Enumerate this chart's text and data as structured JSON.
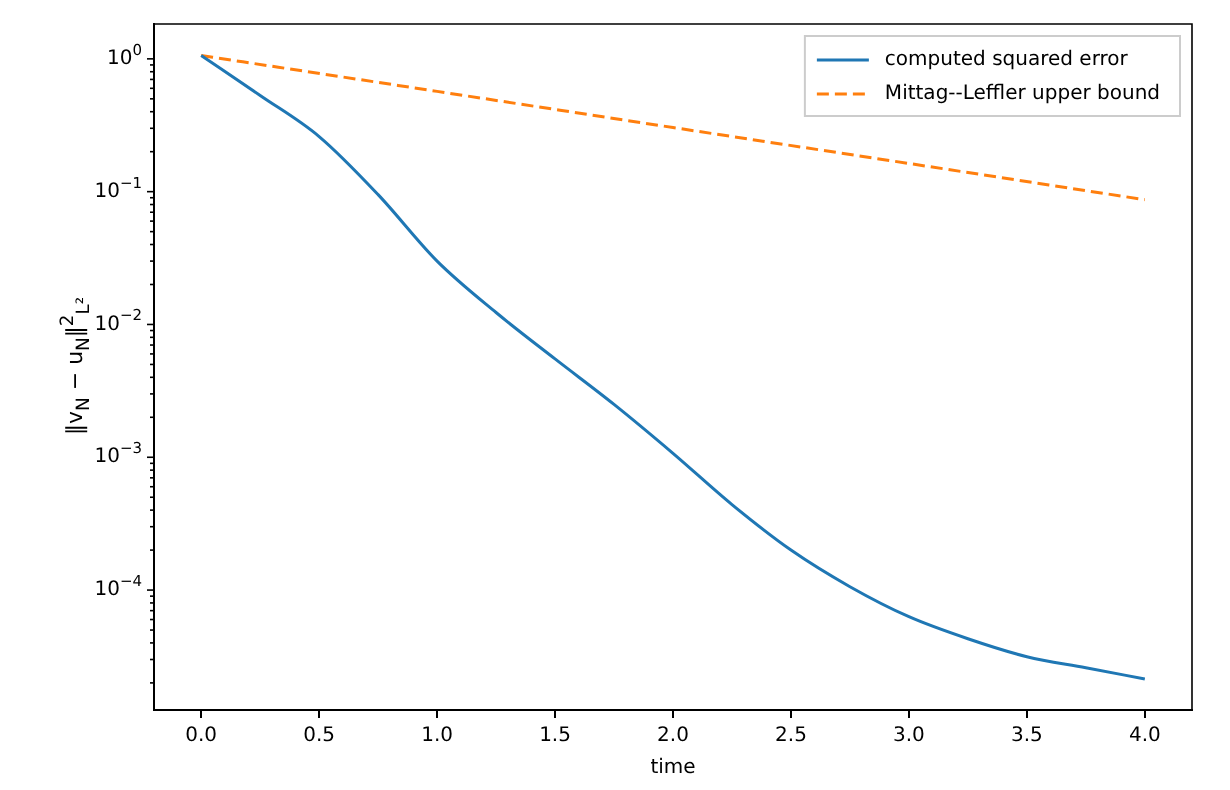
{
  "chart_data": {
    "type": "line",
    "xlabel": "time",
    "ylabel": "‖v$_{N}$ − u$_{N}$‖$^{2}$$_{L²}$",
    "log": "y",
    "grid": false,
    "legend": "top right",
    "marker": "none",
    "xlim": [
      -0.2,
      4.2
    ],
    "xticks": [
      {
        "value": 0,
        "label": "0.0"
      },
      {
        "value": 0.5,
        "label": "0.5"
      },
      {
        "value": 1,
        "label": "1.0"
      },
      {
        "value": 1.5,
        "label": "1.5"
      },
      {
        "value": 2,
        "label": "2.0"
      },
      {
        "value": 2.5,
        "label": "2.5"
      },
      {
        "value": 3,
        "label": "3.0"
      },
      {
        "value": 3.5,
        "label": "3.5"
      },
      {
        "value": 4,
        "label": "4.0"
      }
    ],
    "ylim": [
      1.25e-05,
      1.83
    ],
    "yticks": [
      {
        "value": 0.0001,
        "label": "10$^{−4}$"
      },
      {
        "value": 0.001,
        "label": "10$^{−3}$"
      },
      {
        "value": 0.01,
        "label": "10$^{−2}$"
      },
      {
        "value": 0.1,
        "label": "10$^{−1}$"
      },
      {
        "value": 1,
        "label": "10$^{0}$"
      },
      {
        "value": 2e-05,
        "label": null
      },
      {
        "value": 3e-05,
        "label": null
      },
      {
        "value": 4e-05,
        "label": null
      },
      {
        "value": 5e-05,
        "label": null
      },
      {
        "value": 6e-05,
        "label": null
      },
      {
        "value": 7e-05,
        "label": null
      },
      {
        "value": 8e-05,
        "label": null
      },
      {
        "value": 9e-05,
        "label": null
      },
      {
        "value": 0.0002,
        "label": null
      },
      {
        "value": 0.0003,
        "label": null
      },
      {
        "value": 0.0004,
        "label": null
      },
      {
        "value": 0.0005,
        "label": null
      },
      {
        "value": 0.0006,
        "label": null
      },
      {
        "value": 0.0007,
        "label": null
      },
      {
        "value": 0.0008,
        "label": null
      },
      {
        "value": 0.0009,
        "label": null
      },
      {
        "value": 0.002,
        "label": null
      },
      {
        "value": 0.003,
        "label": null
      },
      {
        "value": 0.004,
        "label": null
      },
      {
        "value": 0.005,
        "label": null
      },
      {
        "value": 0.006,
        "label": null
      },
      {
        "value": 0.007,
        "label": null
      },
      {
        "value": 0.008,
        "label": null
      },
      {
        "value": 0.009,
        "label": null
      },
      {
        "value": 0.02,
        "label": null
      },
      {
        "value": 0.03,
        "label": null
      },
      {
        "value": 0.04,
        "label": null
      },
      {
        "value": 0.05,
        "label": null
      },
      {
        "value": 0.06,
        "label": null
      },
      {
        "value": 0.07,
        "label": null
      },
      {
        "value": 0.08,
        "label": null
      },
      {
        "value": 0.09,
        "label": null
      },
      {
        "value": 0.2,
        "label": null
      },
      {
        "value": 0.3,
        "label": null
      },
      {
        "value": 0.4,
        "label": null
      },
      {
        "value": 0.5,
        "label": null
      },
      {
        "value": 0.6,
        "label": null
      },
      {
        "value": 0.7,
        "label": null
      },
      {
        "value": 0.8,
        "label": null
      },
      {
        "value": 0.9,
        "label": null
      }
    ],
    "series": [
      {
        "name": "computed squared error",
        "color": "#1f77b4",
        "line_style": "solid",
        "x": [
          0,
          0.25,
          0.5,
          0.75,
          1,
          1.25,
          1.5,
          1.75,
          2,
          2.25,
          2.5,
          2.75,
          3,
          3.25,
          3.5,
          3.75,
          4
        ],
        "values": [
          1.06,
          0.53,
          0.26,
          0.095,
          0.03,
          0.0123,
          0.0055,
          0.0025,
          0.00107,
          0.00044,
          0.0002,
          0.000106,
          6.3e-05,
          4.3e-05,
          3.15e-05,
          2.6e-05,
          2.14e-05
        ]
      },
      {
        "name": "Mittag--Leffler upper bound",
        "color": "#ff7f0e",
        "line_style": "dashed",
        "x": [
          0,
          1,
          2,
          3,
          4
        ],
        "values": [
          1.06,
          0.569,
          0.304,
          0.163,
          0.087
        ]
      }
    ]
  }
}
